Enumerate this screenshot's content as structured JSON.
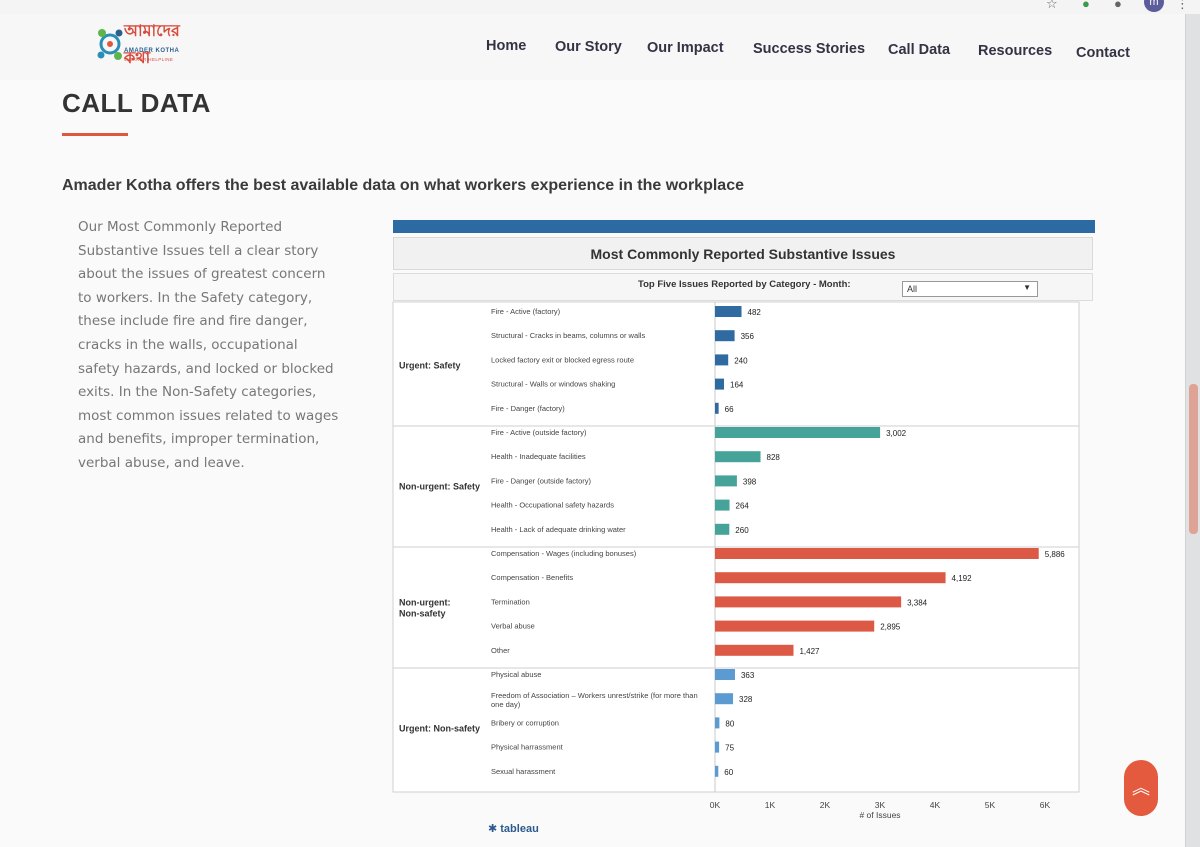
{
  "browser": {
    "avatar_letter": "m",
    "menu_glyph": "⋮",
    "star_glyph": "☆"
  },
  "site": {
    "logo_bn": "আমাদের কথা",
    "logo_en": "AMADER KOTHA",
    "logo_sub": "WORKER HELPLINE",
    "nav": [
      "Home",
      "Our Story",
      "Our Impact",
      "Success Stories",
      "Call Data",
      "Resources",
      "Contact"
    ]
  },
  "page": {
    "title": "CALL DATA",
    "lead": "Amader Kotha offers the best available data on what workers experience in the workplace",
    "description": "Our Most Commonly Reported Substantive Issues tell a clear story about the issues of greatest concern to workers. In the Safety category, these include fire and fire danger, cracks in the walls, occupational safety hazards, and locked or blocked exits. In the Non-Safety categories, most common issues related to wages and benefits, improper termination, verbal abuse, and leave."
  },
  "filter": {
    "label": "Top Five Issues Reported by Category -  Month:",
    "value": "All"
  },
  "colors": {
    "urgent_safety": "#2f6aa0",
    "nonurgent_safety": "#45a39a",
    "nonurgent_nonsafety": "#dc5a45",
    "urgent_nonsafety": "#5b9bd1",
    "accent": "#e0573f"
  },
  "chart_data": {
    "type": "bar",
    "orientation": "horizontal",
    "title": "Most Commonly Reported Substantive Issues",
    "xlabel": "# of Issues",
    "xlim": [
      0,
      6000
    ],
    "x_ticks": [
      "0K",
      "1K",
      "2K",
      "3K",
      "4K",
      "5K",
      "6K"
    ],
    "groups": [
      {
        "category": "Urgent: Safety",
        "color": "#2f6aa0",
        "items": [
          {
            "label": "Fire - Active (factory)",
            "value": 482,
            "value_label": "482"
          },
          {
            "label": "Structural - Cracks in beams, columns or walls",
            "value": 356,
            "value_label": "356"
          },
          {
            "label": "Locked factory exit or blocked egress route",
            "value": 240,
            "value_label": "240"
          },
          {
            "label": "Structural - Walls or windows shaking",
            "value": 164,
            "value_label": "164"
          },
          {
            "label": "Fire - Danger (factory)",
            "value": 66,
            "value_label": "66"
          }
        ]
      },
      {
        "category": "Non-urgent: Safety",
        "color": "#45a39a",
        "items": [
          {
            "label": "Fire - Active (outside factory)",
            "value": 3002,
            "value_label": "3,002"
          },
          {
            "label": "Health - Inadequate facilities",
            "value": 828,
            "value_label": "828"
          },
          {
            "label": "Fire - Danger (outside factory)",
            "value": 398,
            "value_label": "398"
          },
          {
            "label": "Health - Occupational safety hazards",
            "value": 264,
            "value_label": "264"
          },
          {
            "label": "Health - Lack of adequate drinking water",
            "value": 260,
            "value_label": "260"
          }
        ]
      },
      {
        "category": "Non-urgent:\nNon-safety",
        "color": "#dc5a45",
        "items": [
          {
            "label": "Compensation - Wages (including bonuses)",
            "value": 5886,
            "value_label": "5,886"
          },
          {
            "label": "Compensation - Benefits",
            "value": 4192,
            "value_label": "4,192"
          },
          {
            "label": "Termination",
            "value": 3384,
            "value_label": "3,384"
          },
          {
            "label": "Verbal abuse",
            "value": 2895,
            "value_label": "2,895"
          },
          {
            "label": "Other",
            "value": 1427,
            "value_label": "1,427"
          }
        ]
      },
      {
        "category": "Urgent: Non-safety",
        "color": "#5b9bd1",
        "items": [
          {
            "label": "Physical abuse",
            "value": 363,
            "value_label": "363"
          },
          {
            "label": "Freedom of Association – Workers unrest/strike (for more than\none day)",
            "value": 328,
            "value_label": "328"
          },
          {
            "label": "Bribery or corruption",
            "value": 80,
            "value_label": "80"
          },
          {
            "label": "Physical harrassment",
            "value": 75,
            "value_label": "75"
          },
          {
            "label": "Sexual harassment",
            "value": 60,
            "value_label": "60"
          }
        ]
      }
    ]
  }
}
